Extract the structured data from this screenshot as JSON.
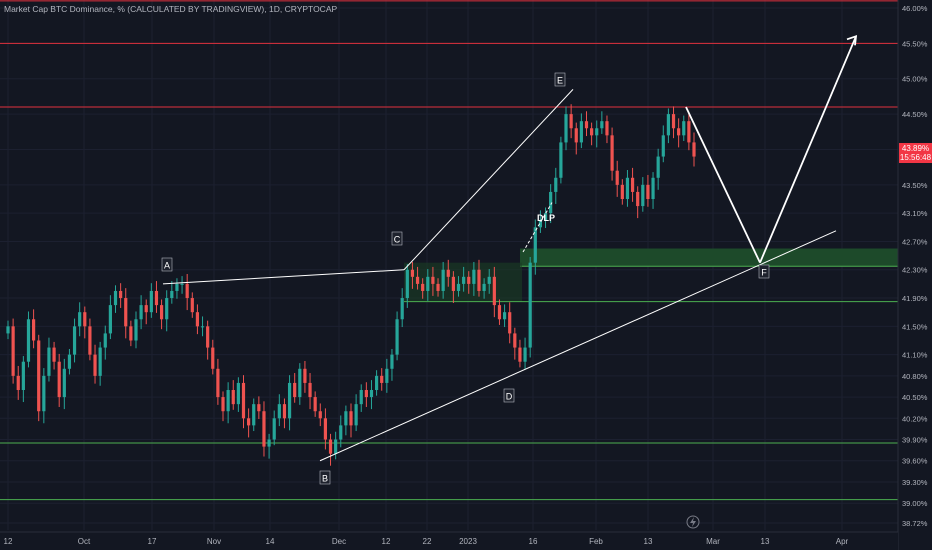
{
  "title": "Market Cap BTC Dominance, % (CALCULATED BY TRADINGVIEW), 1D, CRYPTOCAP",
  "last_price": {
    "value": "43.89%",
    "countdown": "15:56:48"
  },
  "y_axis": {
    "min": 38.72,
    "max": 46.0,
    "ticks": [
      "46.00%",
      "45.50%",
      "45.00%",
      "44.50%",
      "44.00%",
      "43.50%",
      "43.10%",
      "42.70%",
      "42.30%",
      "41.90%",
      "41.50%",
      "41.10%",
      "40.80%",
      "40.50%",
      "40.20%",
      "39.90%",
      "39.60%",
      "39.30%",
      "39.00%",
      "38.72%"
    ]
  },
  "x_axis": {
    "ticks": [
      "12",
      "Oct",
      "17",
      "Nov",
      "14",
      "Dec",
      "12",
      "22",
      "2023",
      "16",
      "Feb",
      "13",
      "Mar",
      "13",
      "Apr"
    ]
  },
  "annotations": {
    "labels": [
      "A",
      "B",
      "C",
      "D",
      "E",
      "F"
    ],
    "dlp": "DLP"
  },
  "colors": {
    "bull": "#26a69a",
    "bear": "#ef5350",
    "resistance": "#e0303d",
    "support": "#4caf50",
    "zone": "#1e4d2b",
    "drawing": "#ffffff"
  },
  "chart_data": {
    "type": "candlestick",
    "title": "Market Cap BTC Dominance, % (CALCULATED BY TRADINGVIEW), 1D, CRYPTOCAP",
    "xlabel": "",
    "ylabel": "",
    "ylim": [
      38.72,
      46.0
    ],
    "close": [
      41.5,
      40.8,
      40.6,
      41.0,
      41.6,
      41.3,
      40.3,
      40.8,
      41.2,
      41.0,
      40.5,
      40.9,
      41.1,
      41.5,
      41.7,
      41.5,
      41.1,
      40.8,
      41.2,
      41.4,
      41.8,
      42.0,
      41.9,
      41.5,
      41.3,
      41.6,
      41.8,
      41.7,
      42.0,
      41.8,
      41.6,
      41.9,
      42.0,
      42.1,
      42.1,
      41.9,
      41.7,
      41.5,
      41.5,
      41.2,
      40.9,
      40.5,
      40.3,
      40.6,
      40.4,
      40.7,
      40.2,
      40.1,
      40.4,
      40.3,
      39.8,
      39.9,
      40.2,
      40.4,
      40.2,
      40.7,
      40.5,
      40.9,
      40.7,
      40.5,
      40.3,
      40.2,
      39.9,
      39.7,
      39.9,
      40.1,
      40.3,
      40.1,
      40.4,
      40.6,
      40.5,
      40.6,
      40.8,
      40.7,
      40.9,
      41.1,
      41.6,
      41.9,
      42.3,
      42.2,
      42.1,
      42.0,
      42.2,
      42.1,
      42.0,
      42.3,
      42.2,
      42.0,
      42.1,
      42.2,
      42.1,
      42.3,
      42.0,
      42.1,
      42.2,
      41.8,
      41.6,
      41.7,
      41.4,
      41.2,
      41.0,
      41.2,
      42.4,
      42.9,
      43.0,
      43.1,
      43.4,
      43.6,
      44.1,
      44.5,
      44.3,
      44.1,
      44.4,
      44.3,
      44.2,
      44.3,
      44.4,
      44.2,
      43.7,
      43.5,
      43.3,
      43.6,
      43.4,
      43.2,
      43.5,
      43.3,
      43.6,
      43.9,
      44.2,
      44.5,
      44.3,
      44.2,
      44.4,
      44.1,
      43.9
    ],
    "annotation_points": [
      {
        "label": "A",
        "close": 42.1
      },
      {
        "label": "B",
        "close": 39.7
      },
      {
        "label": "C",
        "close": 42.3
      },
      {
        "label": "D",
        "close": 41.0
      },
      {
        "label": "E",
        "close": 44.8
      },
      {
        "label": "F",
        "close": 42.4
      }
    ],
    "resistance_levels": [
      46.1,
      45.5,
      44.6
    ],
    "support_levels": [
      41.85,
      39.85,
      39.05
    ],
    "demand_zone": [
      42.35,
      42.6
    ],
    "projection": [
      44.6,
      42.4,
      45.6
    ]
  }
}
